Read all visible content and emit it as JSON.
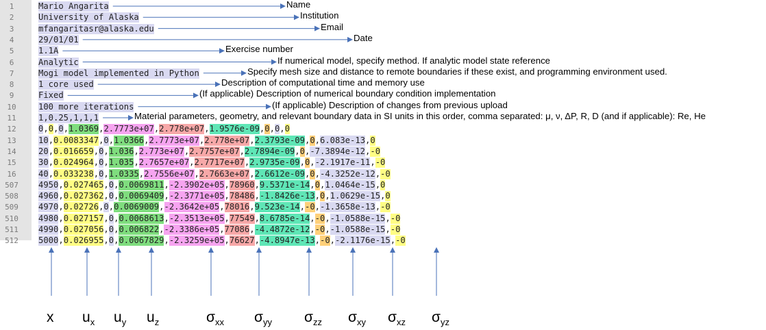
{
  "lines": [
    {
      "no": "1",
      "text": "Mario Angarita"
    },
    {
      "no": "2",
      "text": "University of Alaska"
    },
    {
      "no": "3",
      "text": "mfangaritasr@alaska.edu"
    },
    {
      "no": "4",
      "text": "29/01/01"
    },
    {
      "no": "5",
      "text": "1.1A"
    },
    {
      "no": "6",
      "text": "Analytic"
    },
    {
      "no": "7",
      "text": "Mogi model implemented in Python"
    },
    {
      "no": "8",
      "text": "1 core used"
    },
    {
      "no": "9",
      "text": "Fixed"
    },
    {
      "no": "10",
      "text": "100 more iterations"
    },
    {
      "no": "11",
      "text": "1,0.25,1,1,1"
    }
  ],
  "annotations": [
    "Name",
    "Institution",
    "Email",
    "Date",
    "Exercise number",
    "If numerical model,  specify method.  If analytic model state reference",
    "Specify mesh size and distance to remote boundaries  if these exist, and programming  environment  used.",
    "Description of computational time and memory use",
    "(If applicable) Description of numerical boundary condition implementation",
    "(If applicable) Description of changes from previous upload",
    "Material parameters, geometry,  and relevant boundary data in SI units in this order, comma separated: μ, ν, ΔP, R, D (and if applicable): Re, He"
  ],
  "data_rows": [
    {
      "no": "12",
      "cells": [
        "0",
        "0",
        "0",
        "1.0369",
        "2.7773e+07",
        "2.778e+07",
        "1.9576e-09",
        "0",
        "0",
        "0"
      ]
    },
    {
      "no": "13",
      "cells": [
        "10",
        "0.0083347",
        "0",
        "1.0366",
        "2.7773e+07",
        "2.778e+07",
        "2.3793e-09",
        "0",
        "6.083e-13",
        "0"
      ]
    },
    {
      "no": "14",
      "cells": [
        "20",
        "0.016659",
        "0",
        "1.036",
        "2.773e+07",
        "2.7757e+07",
        "2.7894e-09",
        "0",
        "-7.3894e-12",
        "-0"
      ]
    },
    {
      "no": "15",
      "cells": [
        "30",
        "0.024964",
        "0",
        "1.035",
        "2.7657e+07",
        "2.7717e+07",
        "2.9735e-09",
        "0",
        "-2.1917e-11",
        "-0"
      ]
    },
    {
      "no": "16",
      "cells": [
        "40",
        "0.033238",
        "0",
        "1.0335",
        "2.7556e+07",
        "2.7663e+07",
        "2.6612e-09",
        "0",
        "-4.3252e-12",
        "-0"
      ]
    },
    {
      "no": "507",
      "cells": [
        "4950",
        "0.027465",
        "0",
        "0.0069811",
        "-2.3902e+05",
        "78960",
        "9.5371e-14",
        "0",
        "1.0464e-15",
        "0"
      ]
    },
    {
      "no": "508",
      "cells": [
        "4960",
        "0.027362",
        "0",
        "0.0069409",
        "-2.3771e+05",
        "78486",
        "-1.8426e-13",
        "0",
        "1.0629e-15",
        "0"
      ]
    },
    {
      "no": "509",
      "cells": [
        "4970",
        "0.02726",
        "0",
        "0.0069009",
        "-2.3642e+05",
        "78016",
        "9.523e-14",
        "-0",
        "-1.3658e-13",
        "-0"
      ]
    },
    {
      "no": "510",
      "cells": [
        "4980",
        "0.027157",
        "0",
        "0.0068613",
        "-2.3513e+05",
        "77549",
        "8.6785e-14",
        "-0",
        "-1.0588e-15",
        "-0"
      ]
    },
    {
      "no": "511",
      "cells": [
        "4990",
        "0.027056",
        "0",
        "0.006822",
        "-2.3386e+05",
        "77086",
        "-4.4872e-12",
        "-0",
        "-1.0588e-15",
        "-0"
      ]
    },
    {
      "no": "512",
      "cells": [
        "5000",
        "0.026955",
        "0",
        "0.0067829",
        "-2.3259e+05",
        "76627",
        "-4.8947e-13",
        "-0",
        "-2.1176e-15",
        "-0"
      ]
    }
  ],
  "column_labels": [
    {
      "base": "x",
      "sub": ""
    },
    {
      "base": "u",
      "sub": "x"
    },
    {
      "base": "u",
      "sub": "y"
    },
    {
      "base": "u",
      "sub": "z"
    },
    {
      "base": "σ",
      "sub": "xx"
    },
    {
      "base": "σ",
      "sub": "yy"
    },
    {
      "base": "σ",
      "sub": "zz"
    },
    {
      "base": "σ",
      "sub": "xy"
    },
    {
      "base": "σ",
      "sub": "xz"
    },
    {
      "base": "σ",
      "sub": "yz"
    }
  ]
}
